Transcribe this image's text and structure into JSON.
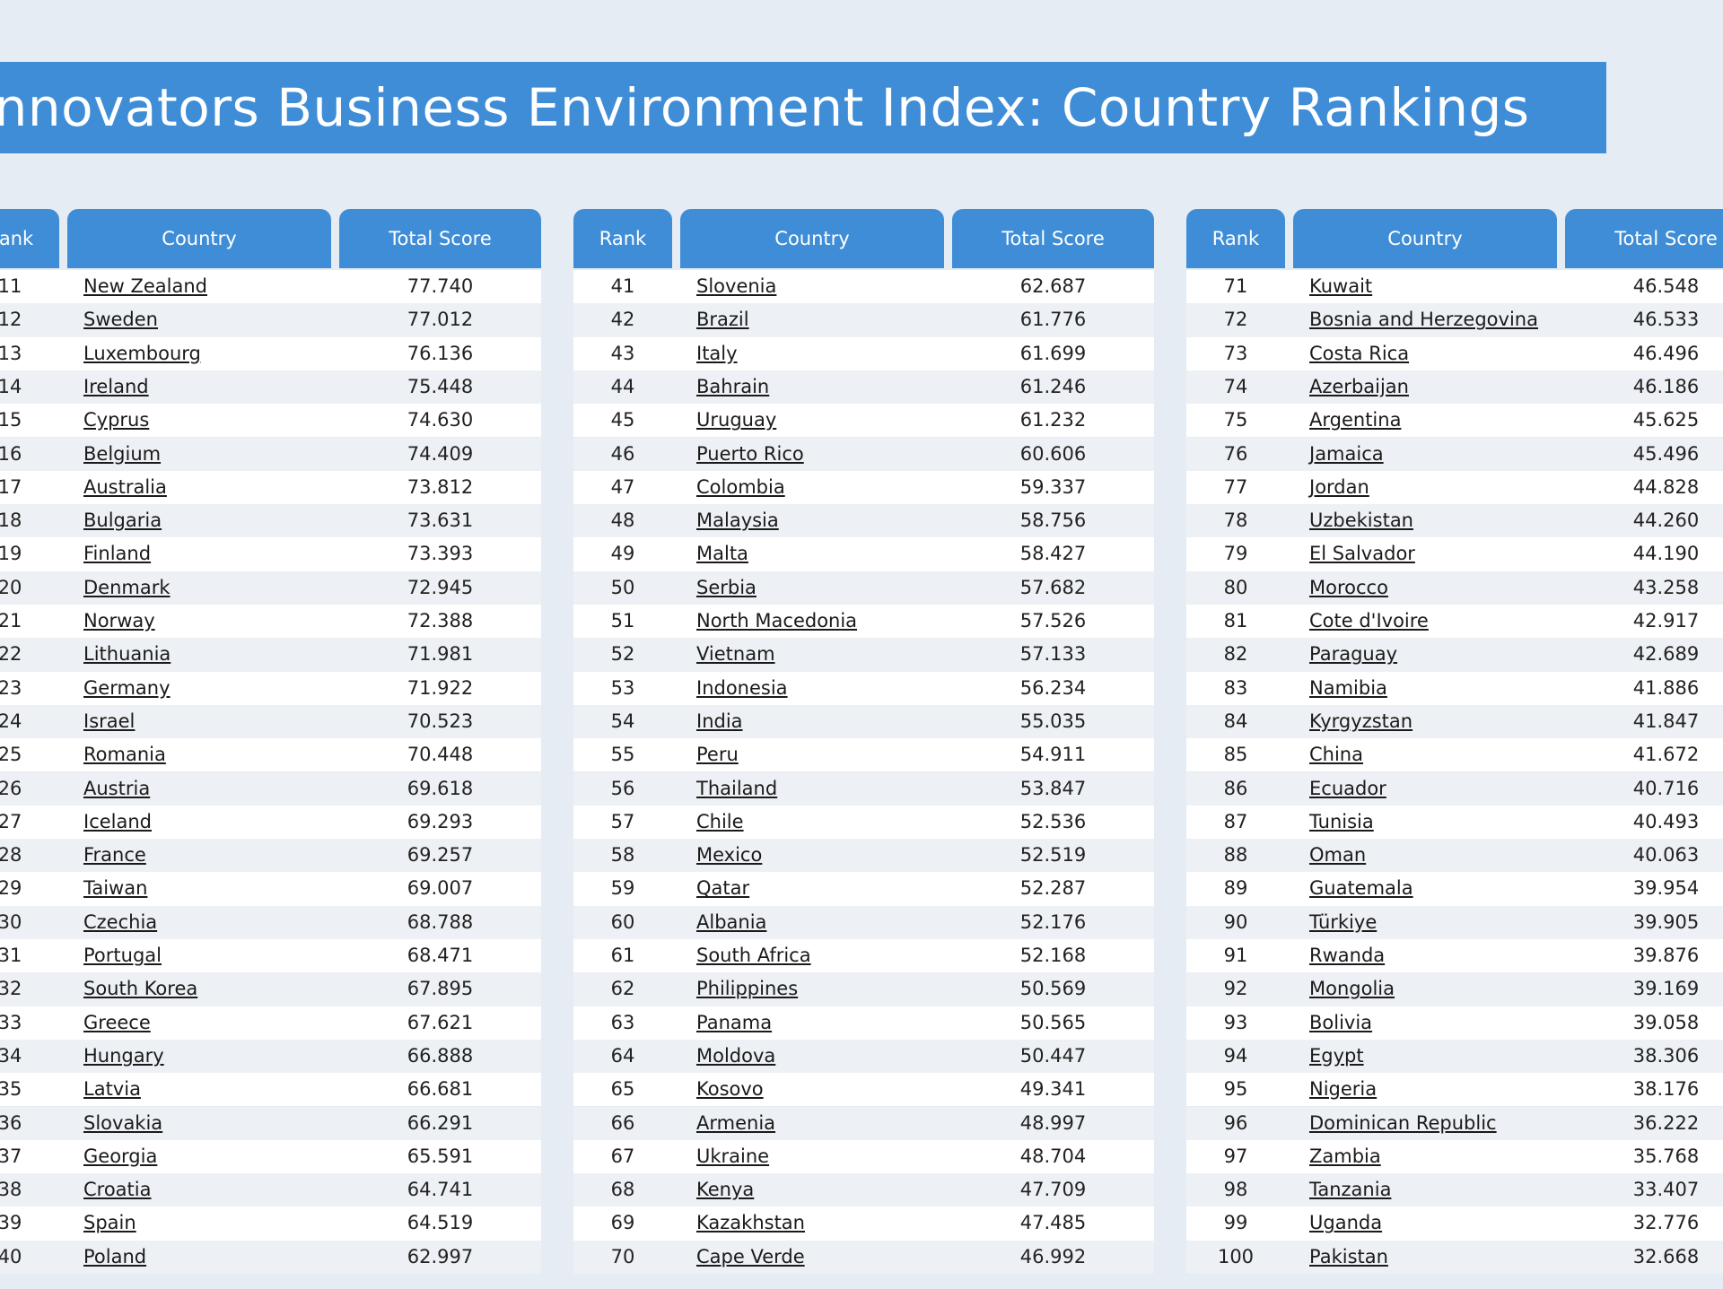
{
  "title": "Innovators Business Environment Index: Country Rankings",
  "tables": [
    {
      "headers": [
        "Rank",
        "Country",
        "Total Score"
      ],
      "rows": [
        [
          "11",
          "New Zealand",
          "77.740"
        ],
        [
          "12",
          "Sweden",
          "77.012"
        ],
        [
          "13",
          "Luxembourg",
          "76.136"
        ],
        [
          "14",
          "Ireland",
          "75.448"
        ],
        [
          "15",
          "Cyprus",
          "74.630"
        ],
        [
          "16",
          "Belgium",
          "74.409"
        ],
        [
          "17",
          "Australia",
          "73.812"
        ],
        [
          "18",
          "Bulgaria",
          "73.631"
        ],
        [
          "19",
          "Finland",
          "73.393"
        ],
        [
          "20",
          "Denmark",
          "72.945"
        ],
        [
          "21",
          "Norway",
          "72.388"
        ],
        [
          "22",
          "Lithuania",
          "71.981"
        ],
        [
          "23",
          "Germany",
          "71.922"
        ],
        [
          "24",
          "Israel",
          "70.523"
        ],
        [
          "25",
          "Romania",
          "70.448"
        ],
        [
          "26",
          "Austria",
          "69.618"
        ],
        [
          "27",
          "Iceland",
          "69.293"
        ],
        [
          "28",
          "France",
          "69.257"
        ],
        [
          "29",
          "Taiwan",
          "69.007"
        ],
        [
          "30",
          "Czechia",
          "68.788"
        ],
        [
          "31",
          "Portugal",
          "68.471"
        ],
        [
          "32",
          "South Korea",
          "67.895"
        ],
        [
          "33",
          "Greece",
          "67.621"
        ],
        [
          "34",
          "Hungary",
          "66.888"
        ],
        [
          "35",
          "Latvia",
          "66.681"
        ],
        [
          "36",
          "Slovakia",
          "66.291"
        ],
        [
          "37",
          "Georgia",
          "65.591"
        ],
        [
          "38",
          "Croatia",
          "64.741"
        ],
        [
          "39",
          "Spain",
          "64.519"
        ],
        [
          "40",
          "Poland",
          "62.997"
        ]
      ]
    },
    {
      "headers": [
        "Rank",
        "Country",
        "Total Score"
      ],
      "rows": [
        [
          "41",
          "Slovenia",
          "62.687"
        ],
        [
          "42",
          "Brazil",
          "61.776"
        ],
        [
          "43",
          "Italy",
          "61.699"
        ],
        [
          "44",
          "Bahrain",
          "61.246"
        ],
        [
          "45",
          "Uruguay",
          "61.232"
        ],
        [
          "46",
          "Puerto Rico",
          "60.606"
        ],
        [
          "47",
          "Colombia",
          "59.337"
        ],
        [
          "48",
          "Malaysia",
          "58.756"
        ],
        [
          "49",
          "Malta",
          "58.427"
        ],
        [
          "50",
          "Serbia",
          "57.682"
        ],
        [
          "51",
          "North Macedonia",
          "57.526"
        ],
        [
          "52",
          "Vietnam",
          "57.133"
        ],
        [
          "53",
          "Indonesia",
          "56.234"
        ],
        [
          "54",
          "India",
          "55.035"
        ],
        [
          "55",
          "Peru",
          "54.911"
        ],
        [
          "56",
          "Thailand",
          "53.847"
        ],
        [
          "57",
          "Chile",
          "52.536"
        ],
        [
          "58",
          "Mexico",
          "52.519"
        ],
        [
          "59",
          "Qatar",
          "52.287"
        ],
        [
          "60",
          "Albania",
          "52.176"
        ],
        [
          "61",
          "South Africa",
          "52.168"
        ],
        [
          "62",
          "Philippines",
          "50.569"
        ],
        [
          "63",
          "Panama",
          "50.565"
        ],
        [
          "64",
          "Moldova",
          "50.447"
        ],
        [
          "65",
          "Kosovo",
          "49.341"
        ],
        [
          "66",
          "Armenia",
          "48.997"
        ],
        [
          "67",
          "Ukraine",
          "48.704"
        ],
        [
          "68",
          "Kenya",
          "47.709"
        ],
        [
          "69",
          "Kazakhstan",
          "47.485"
        ],
        [
          "70",
          "Cape Verde",
          "46.992"
        ]
      ]
    },
    {
      "headers": [
        "Rank",
        "Country",
        "Total Score"
      ],
      "rows": [
        [
          "71",
          "Kuwait",
          "46.548"
        ],
        [
          "72",
          "Bosnia and Herzegovina",
          "46.533"
        ],
        [
          "73",
          "Costa Rica",
          "46.496"
        ],
        [
          "74",
          "Azerbaijan",
          "46.186"
        ],
        [
          "75",
          "Argentina",
          "45.625"
        ],
        [
          "76",
          "Jamaica",
          "45.496"
        ],
        [
          "77",
          "Jordan",
          "44.828"
        ],
        [
          "78",
          "Uzbekistan",
          "44.260"
        ],
        [
          "79",
          "El Salvador",
          "44.190"
        ],
        [
          "80",
          "Morocco",
          "43.258"
        ],
        [
          "81",
          "Cote d'Ivoire",
          "42.917"
        ],
        [
          "82",
          "Paraguay",
          "42.689"
        ],
        [
          "83",
          "Namibia",
          "41.886"
        ],
        [
          "84",
          "Kyrgyzstan",
          "41.847"
        ],
        [
          "85",
          "China",
          "41.672"
        ],
        [
          "86",
          "Ecuador",
          "40.716"
        ],
        [
          "87",
          "Tunisia",
          "40.493"
        ],
        [
          "88",
          "Oman",
          "40.063"
        ],
        [
          "89",
          "Guatemala",
          "39.954"
        ],
        [
          "90",
          "Türkiye",
          "39.905"
        ],
        [
          "91",
          "Rwanda",
          "39.876"
        ],
        [
          "92",
          "Mongolia",
          "39.169"
        ],
        [
          "93",
          "Bolivia",
          "39.058"
        ],
        [
          "94",
          "Egypt",
          "38.306"
        ],
        [
          "95",
          "Nigeria",
          "38.176"
        ],
        [
          "96",
          "Dominican Republic",
          "36.222"
        ],
        [
          "97",
          "Zambia",
          "35.768"
        ],
        [
          "98",
          "Tanzania",
          "33.407"
        ],
        [
          "99",
          "Uganda",
          "32.776"
        ],
        [
          "100",
          "Pakistan",
          "32.668"
        ]
      ]
    }
  ]
}
